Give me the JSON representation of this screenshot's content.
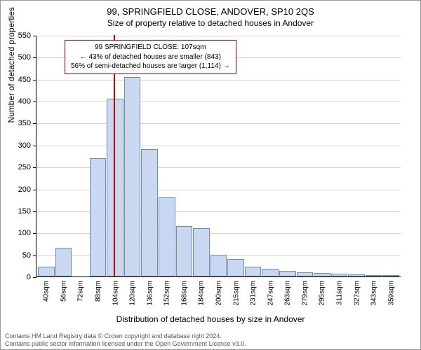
{
  "title": "99, SPRINGFIELD CLOSE, ANDOVER, SP10 2QS",
  "subtitle": "Size of property relative to detached houses in Andover",
  "y_axis_title": "Number of detached properties",
  "x_axis_title": "Distribution of detached houses by size in Andover",
  "chart": {
    "type": "histogram",
    "ymax": 550,
    "ytick_step": 50,
    "bar_fill": "#c9d8f0",
    "bar_stroke": "#6b8bc5",
    "grid_color": "#808080",
    "background": "#ffffff",
    "marker_color": "#cc0000",
    "marker_x_value": 107,
    "categories": [
      "40sqm",
      "56sqm",
      "72sqm",
      "88sqm",
      "104sqm",
      "120sqm",
      "136sqm",
      "152sqm",
      "168sqm",
      "184sqm",
      "200sqm",
      "215sqm",
      "231sqm",
      "247sqm",
      "263sqm",
      "279sqm",
      "295sqm",
      "311sqm",
      "327sqm",
      "343sqm",
      "359sqm"
    ],
    "values": [
      22,
      65,
      0,
      270,
      405,
      455,
      290,
      180,
      115,
      110,
      50,
      40,
      22,
      18,
      12,
      10,
      8,
      6,
      5,
      4,
      3
    ]
  },
  "annotation": {
    "line1": "99 SPRINGFIELD CLOSE: 107sqm",
    "line2": "← 43% of detached houses are smaller (843)",
    "line3": "56% of semi-detached houses are larger (1,114) →",
    "border_color": "#b00000"
  },
  "footer": {
    "line1": "Contains HM Land Registry data © Crown copyright and database right 2024.",
    "line2": "Contains public sector information licensed under the Open Government Licence v3.0."
  }
}
